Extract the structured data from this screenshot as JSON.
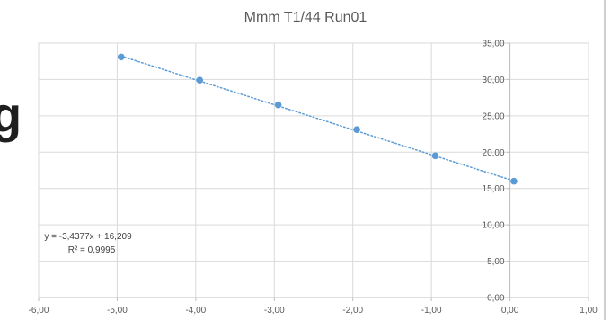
{
  "side_fragment": "g",
  "chart_data": {
    "type": "scatter",
    "title": "Mmm T1/44 Run01",
    "xlabel": "",
    "ylabel": "",
    "xlim": [
      -6,
      1
    ],
    "ylim": [
      0,
      35
    ],
    "x_ticks": [
      "-6,00",
      "-5,00",
      "-4,00",
      "-3,00",
      "-2,00",
      "-1,00",
      "0,00",
      "1,00"
    ],
    "y_ticks": [
      "0,00",
      "5,00",
      "10,00",
      "15,00",
      "20,00",
      "25,00",
      "30,00",
      "35,00"
    ],
    "grid": "horizontal",
    "legend": "none",
    "series": [
      {
        "x": [
          -4.95,
          -3.95,
          -2.95,
          -1.95,
          -0.95,
          0.05
        ],
        "y": [
          33.1,
          29.9,
          26.5,
          23.1,
          19.5,
          16.0
        ],
        "marker_color": "#5b9bd5"
      }
    ],
    "trendline": {
      "slope": -3.4377,
      "intercept": 16.209,
      "style": "dotted",
      "color": "#5b9bd5",
      "x_range": [
        -4.95,
        0.05
      ],
      "equation": "y = -3,4377x + 16,209",
      "r_squared": "R² = 0,9995"
    }
  }
}
